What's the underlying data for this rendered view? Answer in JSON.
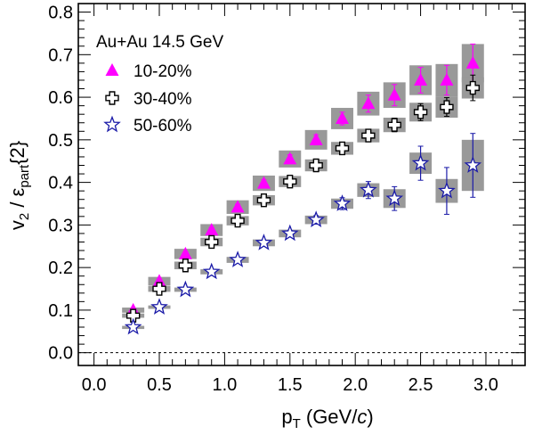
{
  "chart_data": {
    "type": "scatter",
    "annotation": "Au+Au 14.5 GeV",
    "xlabel": {
      "main": "p",
      "sub": "T",
      "unit_pre": " (GeV/",
      "unit_it": "c",
      "unit_post": ")"
    },
    "ylabel": {
      "v": "v",
      "vsub": "2",
      "mid": " / ε",
      "esub": "part",
      "tail": "{2}"
    },
    "xlim": [
      -0.12,
      3.3
    ],
    "ylim": [
      -0.03,
      0.82
    ],
    "xticks": [
      "0.0",
      "0.5",
      "1.0",
      "1.5",
      "2.0",
      "2.5",
      "3.0"
    ],
    "yticks": [
      "0.0",
      "0.1",
      "0.2",
      "0.3",
      "0.4",
      "0.5",
      "0.6",
      "0.7",
      "0.8"
    ],
    "reference_line_y": 0,
    "legend_position": "top-left",
    "series": [
      {
        "name": "10-20%",
        "marker": "triangle",
        "color": "#ff00ff",
        "x": [
          0.3,
          0.5,
          0.7,
          0.9,
          1.1,
          1.3,
          1.5,
          1.7,
          1.9,
          2.1,
          2.3,
          2.5,
          2.7,
          2.9
        ],
        "y": [
          0.1,
          0.168,
          0.232,
          0.288,
          0.342,
          0.398,
          0.455,
          0.5,
          0.55,
          0.585,
          0.605,
          0.64,
          0.64,
          0.68
        ],
        "stat_err": [
          0.003,
          0.004,
          0.005,
          0.006,
          0.007,
          0.008,
          0.01,
          0.012,
          0.015,
          0.02,
          0.025,
          0.03,
          0.035,
          0.045
        ],
        "sys_err": [
          0.006,
          0.01,
          0.012,
          0.014,
          0.016,
          0.018,
          0.02,
          0.023,
          0.025,
          0.028,
          0.03,
          0.035,
          0.038,
          0.045
        ]
      },
      {
        "name": "30-40%",
        "marker": "open-cross",
        "color": "#000000",
        "x": [
          0.3,
          0.5,
          0.7,
          0.9,
          1.1,
          1.3,
          1.5,
          1.7,
          1.9,
          2.1,
          2.3,
          2.5,
          2.7,
          2.9
        ],
        "y": [
          0.087,
          0.15,
          0.205,
          0.26,
          0.31,
          0.358,
          0.402,
          0.44,
          0.48,
          0.51,
          0.535,
          0.565,
          0.577,
          0.622
        ],
        "stat_err": [
          0.003,
          0.003,
          0.004,
          0.005,
          0.006,
          0.007,
          0.008,
          0.01,
          0.011,
          0.013,
          0.016,
          0.02,
          0.022,
          0.03
        ],
        "sys_err": [
          0.005,
          0.007,
          0.009,
          0.01,
          0.011,
          0.012,
          0.013,
          0.014,
          0.015,
          0.016,
          0.017,
          0.022,
          0.025,
          0.025
        ]
      },
      {
        "name": "50-60%",
        "marker": "open-star",
        "color": "#1a1aa8",
        "x": [
          0.3,
          0.5,
          0.7,
          0.9,
          1.1,
          1.3,
          1.5,
          1.7,
          1.9,
          2.1,
          2.3,
          2.5,
          2.7,
          2.9
        ],
        "y": [
          0.06,
          0.107,
          0.148,
          0.19,
          0.218,
          0.258,
          0.28,
          0.312,
          0.35,
          0.382,
          0.362,
          0.445,
          0.38,
          0.44
        ],
        "stat_err": [
          0.003,
          0.003,
          0.004,
          0.005,
          0.005,
          0.006,
          0.007,
          0.01,
          0.014,
          0.02,
          0.028,
          0.04,
          0.055,
          0.075
        ],
        "sys_err": [
          0.003,
          0.004,
          0.005,
          0.006,
          0.007,
          0.008,
          0.009,
          0.01,
          0.012,
          0.016,
          0.022,
          0.025,
          0.028,
          0.06
        ]
      }
    ]
  }
}
